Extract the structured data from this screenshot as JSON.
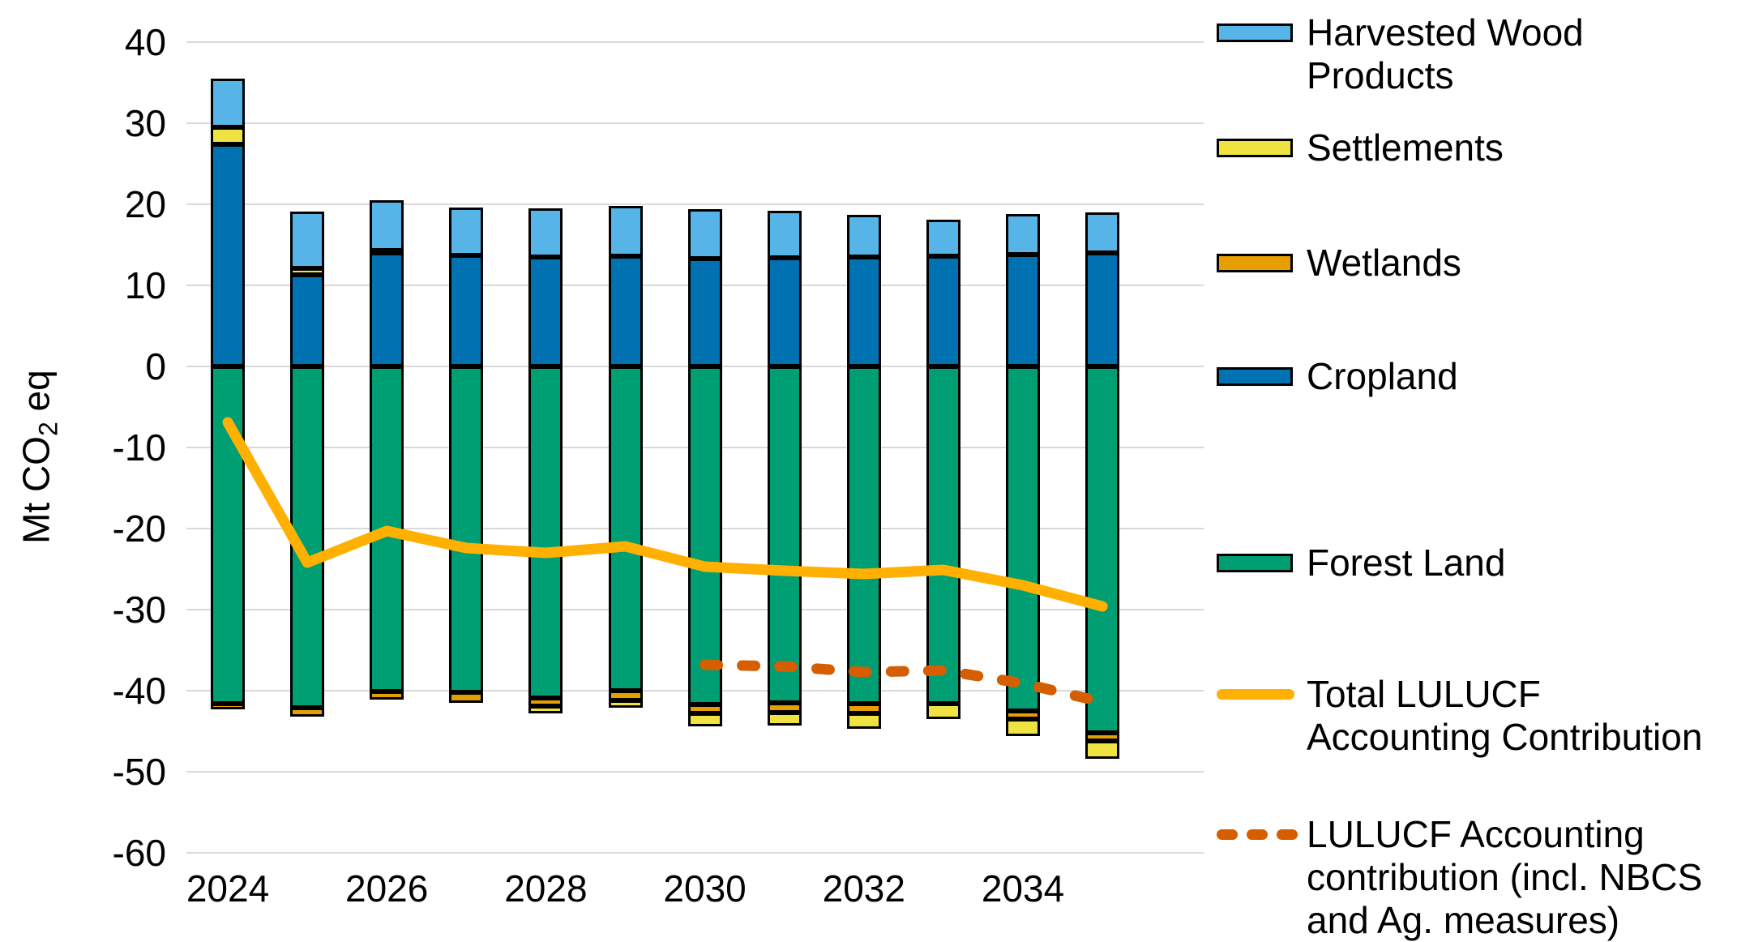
{
  "chart_data": {
    "type": "bar",
    "subtype": "stacked-bar-with-lines",
    "title": "",
    "ylabel": {
      "prefix": "Mt CO",
      "sub": "2",
      "suffix": " eq"
    },
    "xlabel": "",
    "ylim": [
      -60,
      40
    ],
    "y_ticks": [
      40,
      30,
      20,
      10,
      0,
      -10,
      -20,
      -30,
      -40,
      -50,
      -60
    ],
    "x_tick_labels": [
      "2024",
      "2026",
      "2028",
      "2030",
      "2032",
      "2034"
    ],
    "grid": true,
    "legend_position": "right",
    "categories": [
      2024,
      2025,
      2026,
      2027,
      2028,
      2029,
      2030,
      2031,
      2032,
      2033,
      2034,
      2035
    ],
    "bar_series": [
      {
        "name": "Cropland",
        "color": "#0072B2",
        "values": [
          27.4,
          11.3,
          14.0,
          13.7,
          13.5,
          13.6,
          13.3,
          13.4,
          13.5,
          13.6,
          13.8,
          14.0
        ]
      },
      {
        "name": "Settlements (above zero)",
        "color": "#EFE342",
        "values": [
          2.1,
          0.8,
          0.3,
          0,
          0,
          0,
          0,
          0,
          0,
          0,
          0,
          0
        ]
      },
      {
        "name": "Harvested Wood Products",
        "color": "#56B4E9",
        "values": [
          6.0,
          7.0,
          6.2,
          5.9,
          6.0,
          6.2,
          6.1,
          5.8,
          5.2,
          4.5,
          5.0,
          5.0
        ]
      },
      {
        "name": "Forest Land",
        "color": "#009E73",
        "values": [
          -41.6,
          -42.1,
          -40.1,
          -40.2,
          -40.9,
          -40.0,
          -41.7,
          -41.5,
          -41.6,
          -41.6,
          -42.5,
          -45.2
        ]
      },
      {
        "name": "Wetlands",
        "color": "#E69F00",
        "values": [
          -0.7,
          -1.1,
          -1.0,
          -1.3,
          -1.0,
          -1.2,
          -1.1,
          -1.2,
          -1.2,
          0,
          -1.0,
          -1.0
        ]
      },
      {
        "name": "Settlements (below zero)",
        "color": "#EFE342",
        "values": [
          0,
          0,
          0,
          0,
          -0.9,
          -0.9,
          -1.6,
          -1.6,
          -1.9,
          -1.9,
          -2.1,
          -2.2
        ]
      }
    ],
    "line_series": [
      {
        "name": "Total LULUCF Accounting Contribution",
        "color": "#FFB000",
        "style": "solid",
        "values": [
          -6.9,
          -24.2,
          -20.3,
          -22.4,
          -23.0,
          -22.2,
          -24.7,
          -25.2,
          -25.6,
          -25.1,
          -27.0,
          -29.6
        ]
      },
      {
        "name": "LULUCF Accounting contribution (incl. NBCS and Ag. measures)",
        "color": "#D55E00",
        "style": "dashed",
        "values": [
          null,
          null,
          null,
          null,
          null,
          null,
          -36.8,
          -37.0,
          -37.7,
          -37.5,
          -39.1,
          -41.4
        ]
      }
    ],
    "legend": [
      {
        "key": "harvested-wood-products",
        "swatch": "box",
        "color": "#56B4E9",
        "lines": [
          "Harvested Wood",
          "Products"
        ]
      },
      {
        "key": "settlements",
        "swatch": "box",
        "color": "#EFE342",
        "lines": [
          "Settlements"
        ]
      },
      {
        "key": "wetlands",
        "swatch": "box",
        "color": "#E69F00",
        "lines": [
          "Wetlands"
        ]
      },
      {
        "key": "cropland",
        "swatch": "box",
        "color": "#0072B2",
        "lines": [
          "Cropland"
        ]
      },
      {
        "key": "forest-land",
        "swatch": "box",
        "color": "#009E73",
        "lines": [
          "Forest Land"
        ]
      },
      {
        "key": "total-lulucf",
        "swatch": "solid-line",
        "color": "#FFB000",
        "lines": [
          "Total LULUCF",
          "Accounting Contribution"
        ]
      },
      {
        "key": "lulucf-nbcs",
        "swatch": "dashed-line",
        "color": "#D55E00",
        "lines": [
          "LULUCF Accounting",
          "contribution (incl. NBCS",
          "and Ag. measures)"
        ]
      }
    ],
    "colors": {
      "grid": "#d9d9d9",
      "bar_border": "#000000",
      "background": "#ffffff"
    }
  }
}
